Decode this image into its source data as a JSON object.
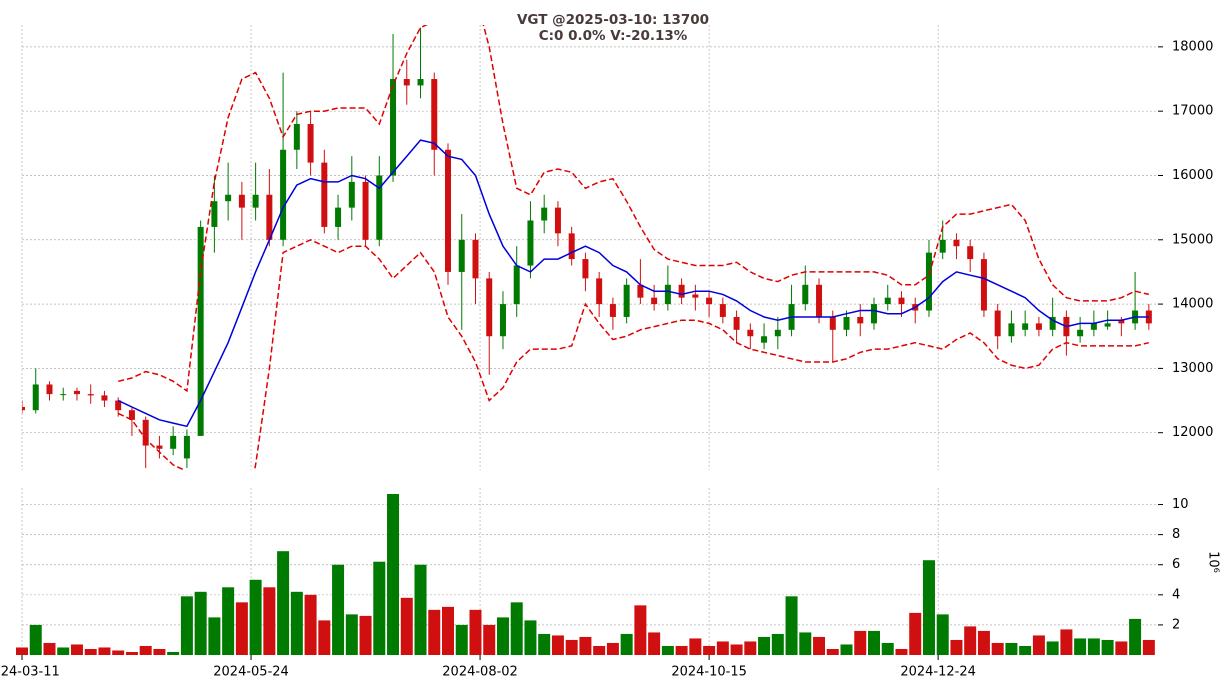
{
  "chart_data": {
    "type": "candlestick",
    "title": "VGT @2025-03-10: 13700",
    "subtitle": "C:0 0.0% V:-20.13%",
    "x": [
      0,
      3,
      6,
      9,
      12,
      15,
      18,
      21,
      24,
      27,
      30,
      33,
      36,
      39,
      42,
      45,
      48,
      51,
      54,
      57,
      60,
      63,
      66,
      69,
      72,
      75,
      78,
      81,
      84,
      87,
      90,
      93,
      96,
      99,
      102,
      105,
      108,
      111,
      114,
      117,
      120,
      123,
      126,
      129,
      132,
      135,
      138,
      141,
      144,
      147,
      150,
      153,
      156,
      159,
      162,
      165,
      168,
      171,
      174,
      177,
      180,
      183,
      186,
      189,
      192,
      195,
      198,
      201,
      204,
      207,
      210,
      213,
      216,
      219,
      222,
      225,
      228,
      231,
      234,
      237,
      240,
      243,
      246
    ],
    "xlim": [
      0,
      248
    ],
    "xticks": [
      {
        "value": 0,
        "label": "2024-03-11"
      },
      {
        "value": 50,
        "label": "2024-05-24"
      },
      {
        "value": 100,
        "label": "2024-08-02"
      },
      {
        "value": 150,
        "label": "2024-10-15"
      },
      {
        "value": 200,
        "label": "2024-12-24"
      }
    ],
    "ylim": [
      11420,
      18340
    ],
    "yticks": [
      12000,
      13000,
      14000,
      15000,
      16000,
      17000,
      18000
    ],
    "grid": true,
    "up_color": "#007a00",
    "down_color": "#d01010",
    "ohlc": [
      [
        12400,
        12500,
        12300,
        12350
      ],
      [
        12350,
        13000,
        12300,
        12750
      ],
      [
        12750,
        12800,
        12500,
        12600
      ],
      [
        12600,
        12700,
        12500,
        12600
      ],
      [
        12650,
        12700,
        12500,
        12600
      ],
      [
        12600,
        12750,
        12450,
        12580
      ],
      [
        12580,
        12650,
        12400,
        12500
      ],
      [
        12500,
        12550,
        12250,
        12350
      ],
      [
        12350,
        12400,
        11950,
        12200
      ],
      [
        12200,
        12250,
        11450,
        11800
      ],
      [
        11800,
        11950,
        11600,
        11750
      ],
      [
        11750,
        12100,
        11650,
        11950
      ],
      [
        11600,
        12050,
        11450,
        11950
      ],
      [
        11950,
        15300,
        11950,
        15200
      ],
      [
        15200,
        16000,
        14800,
        15600
      ],
      [
        15600,
        16200,
        15300,
        15700
      ],
      [
        15700,
        15900,
        15000,
        15500
      ],
      [
        15500,
        16200,
        15300,
        15700
      ],
      [
        15700,
        16100,
        14900,
        15000
      ],
      [
        15000,
        17600,
        14900,
        16400
      ],
      [
        16400,
        17000,
        16100,
        16800
      ],
      [
        16800,
        17000,
        16000,
        16200
      ],
      [
        16200,
        16400,
        15100,
        15200
      ],
      [
        15200,
        15700,
        15000,
        15500
      ],
      [
        15500,
        16300,
        15300,
        15900
      ],
      [
        15900,
        16000,
        14900,
        15000
      ],
      [
        15000,
        16300,
        14900,
        16000
      ],
      [
        16000,
        18200,
        15900,
        17500
      ],
      [
        17500,
        17800,
        17100,
        17400
      ],
      [
        17400,
        18300,
        17200,
        17500
      ],
      [
        17500,
        17600,
        16000,
        16400
      ],
      [
        16400,
        16500,
        14300,
        14500
      ],
      [
        14500,
        15400,
        13600,
        15000
      ],
      [
        15000,
        15100,
        14000,
        14400
      ],
      [
        14400,
        14500,
        12900,
        13500
      ],
      [
        13500,
        14200,
        13300,
        14000
      ],
      [
        14000,
        14900,
        13800,
        14600
      ],
      [
        14600,
        15600,
        14400,
        15300
      ],
      [
        15300,
        15700,
        15100,
        15500
      ],
      [
        15500,
        15600,
        14900,
        15100
      ],
      [
        15100,
        15200,
        14600,
        14700
      ],
      [
        14700,
        14800,
        14200,
        14400
      ],
      [
        14400,
        14500,
        13800,
        14000
      ],
      [
        14000,
        14100,
        13600,
        13800
      ],
      [
        13800,
        14400,
        13700,
        14300
      ],
      [
        14300,
        14700,
        14000,
        14100
      ],
      [
        14100,
        14300,
        13900,
        14000
      ],
      [
        14000,
        14600,
        13900,
        14300
      ],
      [
        14300,
        14400,
        14000,
        14100
      ],
      [
        14150,
        14300,
        13900,
        14100
      ],
      [
        14100,
        14200,
        13800,
        14000
      ],
      [
        14000,
        14100,
        13700,
        13800
      ],
      [
        13800,
        13900,
        13400,
        13600
      ],
      [
        13600,
        13700,
        13300,
        13500
      ],
      [
        13400,
        13700,
        13300,
        13500
      ],
      [
        13500,
        13800,
        13300,
        13600
      ],
      [
        13600,
        14300,
        13500,
        14000
      ],
      [
        14000,
        14600,
        13900,
        14300
      ],
      [
        14300,
        14400,
        13700,
        13800
      ],
      [
        13800,
        13900,
        13100,
        13600
      ],
      [
        13600,
        13900,
        13500,
        13800
      ],
      [
        13800,
        14000,
        13500,
        13700
      ],
      [
        13700,
        14100,
        13600,
        14000
      ],
      [
        14000,
        14300,
        13900,
        14100
      ],
      [
        14100,
        14200,
        13800,
        14000
      ],
      [
        14000,
        14100,
        13700,
        13900
      ],
      [
        13900,
        15000,
        13800,
        14800
      ],
      [
        14800,
        15300,
        14700,
        15000
      ],
      [
        15000,
        15100,
        14700,
        14900
      ],
      [
        14900,
        15000,
        14500,
        14700
      ],
      [
        14700,
        14800,
        13800,
        13900
      ],
      [
        13900,
        14000,
        13300,
        13500
      ],
      [
        13500,
        13900,
        13400,
        13700
      ],
      [
        13600,
        13900,
        13500,
        13700
      ],
      [
        13700,
        13800,
        13500,
        13600
      ],
      [
        13600,
        14100,
        13500,
        13800
      ],
      [
        13800,
        13900,
        13200,
        13500
      ],
      [
        13500,
        13800,
        13400,
        13600
      ],
      [
        13600,
        13900,
        13500,
        13700
      ],
      [
        13650,
        13900,
        13600,
        13700
      ],
      [
        13750,
        13800,
        13500,
        13700
      ],
      [
        13700,
        14500,
        13600,
        13900
      ],
      [
        13900,
        14000,
        13600,
        13700
      ]
    ],
    "ma": {
      "color": "#0000dd",
      "values": [
        null,
        null,
        null,
        null,
        null,
        null,
        null,
        12500,
        12400,
        12300,
        12200,
        12150,
        12100,
        12500,
        12950,
        13400,
        13950,
        14500,
        15000,
        15500,
        15850,
        15950,
        15900,
        15900,
        16000,
        15950,
        15800,
        16050,
        16300,
        16550,
        16500,
        16300,
        16250,
        16000,
        15400,
        14900,
        14600,
        14500,
        14700,
        14700,
        14800,
        14900,
        14800,
        14600,
        14500,
        14300,
        14200,
        14200,
        14150,
        14200,
        14200,
        14150,
        14050,
        13900,
        13800,
        13750,
        13800,
        13800,
        13800,
        13800,
        13850,
        13900,
        13900,
        13850,
        13850,
        13950,
        14100,
        14350,
        14500,
        14450,
        14400,
        14300,
        14200,
        14100,
        13900,
        13750,
        13650,
        13700,
        13700,
        13750,
        13750,
        13800,
        13800
      ]
    },
    "upper": {
      "color": "#e00000",
      "values": [
        null,
        null,
        null,
        null,
        null,
        null,
        null,
        12800,
        12850,
        12950,
        12900,
        12800,
        12650,
        14500,
        15900,
        16900,
        17500,
        17600,
        17200,
        16600,
        16950,
        17000,
        17000,
        17050,
        17050,
        17050,
        16800,
        17400,
        17900,
        18300,
        18400,
        19000,
        19500,
        18800,
        18000,
        16800,
        15800,
        15700,
        16050,
        16100,
        16050,
        15800,
        15900,
        15950,
        15600,
        15200,
        14850,
        14700,
        14650,
        14600,
        14600,
        14600,
        14650,
        14500,
        14400,
        14350,
        14450,
        14500,
        14500,
        14500,
        14500,
        14500,
        14500,
        14450,
        14300,
        14300,
        14450,
        15200,
        15400,
        15400,
        15450,
        15500,
        15550,
        15300,
        14700,
        14300,
        14100,
        14050,
        14050,
        14050,
        14100,
        14200,
        14150
      ]
    },
    "lower": {
      "color": "#e00000",
      "values": [
        null,
        null,
        null,
        null,
        null,
        null,
        null,
        12300,
        12200,
        11900,
        11700,
        11500,
        11400,
        10500,
        10000,
        10000,
        10500,
        11500,
        13000,
        14800,
        14900,
        15000,
        14900,
        14800,
        14900,
        14900,
        14700,
        14400,
        14600,
        14800,
        14500,
        13800,
        13500,
        13100,
        12500,
        12700,
        13100,
        13300,
        13300,
        13300,
        13350,
        14000,
        13700,
        13450,
        13500,
        13600,
        13650,
        13700,
        13750,
        13750,
        13700,
        13600,
        13400,
        13300,
        13250,
        13200,
        13150,
        13100,
        13100,
        13100,
        13150,
        13250,
        13300,
        13300,
        13350,
        13400,
        13350,
        13300,
        13450,
        13550,
        13400,
        13150,
        13050,
        13000,
        13050,
        13300,
        13400,
        13350,
        13350,
        13350,
        13350,
        13350,
        13400
      ]
    },
    "volume": {
      "label": "10⁶",
      "ylim": [
        0,
        11.1
      ],
      "yticks": [
        2,
        4,
        6,
        8,
        10
      ],
      "values": [
        0.5,
        2.0,
        0.8,
        0.5,
        0.7,
        0.4,
        0.5,
        0.3,
        0.2,
        0.6,
        0.4,
        0.2,
        3.9,
        4.2,
        2.5,
        4.5,
        3.5,
        5.0,
        4.5,
        6.9,
        4.2,
        4.0,
        2.3,
        6.0,
        2.7,
        2.6,
        6.2,
        10.7,
        3.8,
        6.0,
        3.0,
        3.2,
        2.0,
        3.0,
        2.0,
        2.5,
        3.5,
        2.3,
        1.4,
        1.3,
        1.0,
        1.2,
        0.6,
        0.8,
        1.4,
        3.3,
        1.5,
        0.6,
        0.6,
        1.1,
        0.6,
        0.9,
        0.7,
        0.9,
        1.2,
        1.4,
        3.9,
        1.5,
        1.2,
        0.4,
        0.7,
        1.6,
        1.6,
        0.8,
        0.4,
        2.8,
        6.3,
        2.7,
        1.0,
        1.9,
        1.6,
        0.8,
        0.8,
        0.6,
        1.3,
        0.9,
        1.7,
        1.1,
        1.1,
        1.0,
        0.9,
        2.4,
        1.0
      ]
    }
  }
}
